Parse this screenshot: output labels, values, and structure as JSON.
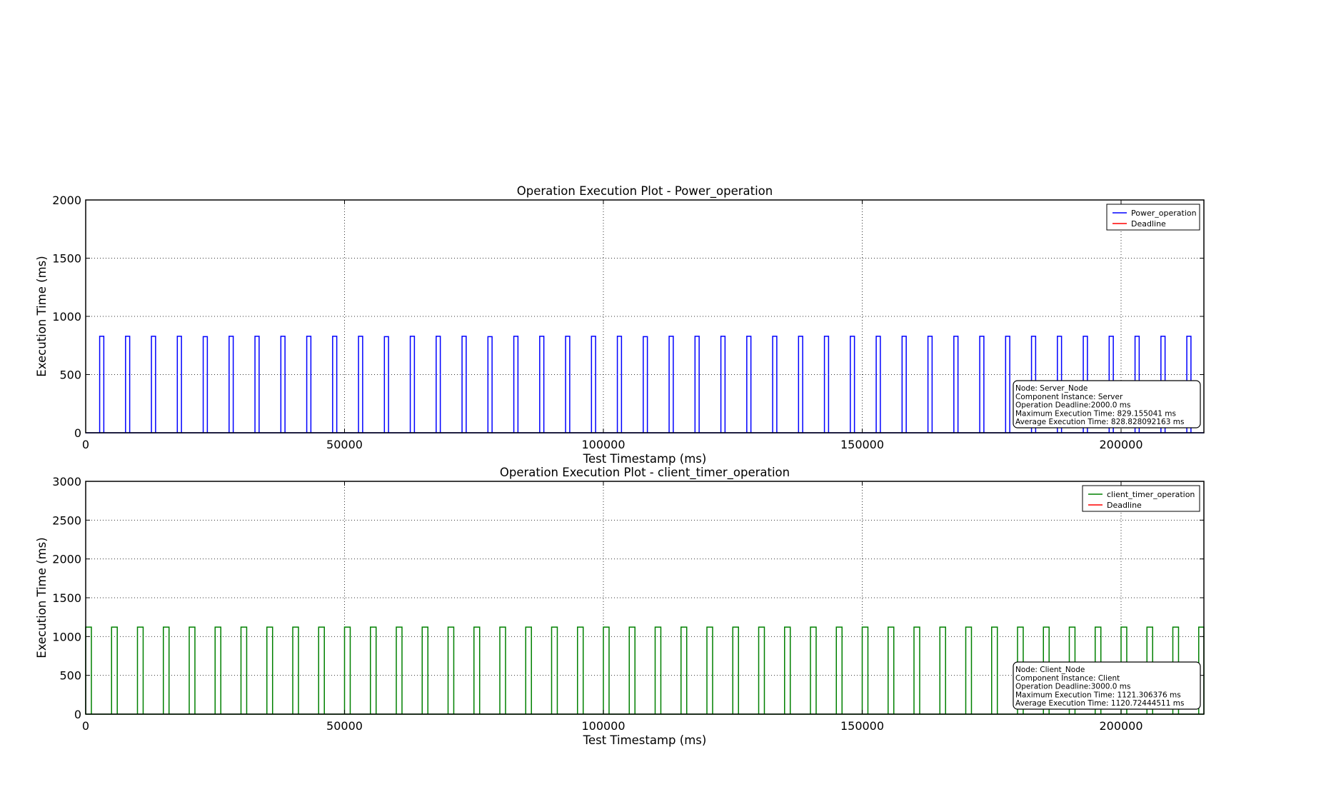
{
  "chart_data": [
    {
      "type": "line",
      "title": "Operation Execution Plot - Power_operation",
      "xlabel": "Test Timestamp (ms)",
      "ylabel": "Execution Time (ms)",
      "xlim": [
        0,
        216000
      ],
      "ylim": [
        0,
        2000
      ],
      "xticks": [
        0,
        50000,
        100000,
        150000,
        200000
      ],
      "xtick_labels": [
        "0",
        "50000",
        "100000",
        "150000",
        "200000"
      ],
      "yticks": [
        0,
        500,
        1000,
        1500,
        2000
      ],
      "ytick_labels": [
        "0",
        "500",
        "1000",
        "1500",
        "2000"
      ],
      "grid": true,
      "legend_position": "top-right",
      "series": [
        {
          "name": "Power_operation",
          "color": "#0000ff",
          "style": "pulse",
          "pulse_width_ms": 800,
          "pulse_starts": [
            2700,
            7700,
            12700,
            17700,
            22700,
            27700,
            32700,
            37700,
            42700,
            47700,
            52700,
            57700,
            62700,
            67700,
            72700,
            77700,
            82700,
            87700,
            92700,
            97700,
            102700,
            107700,
            112700,
            117700,
            122700,
            127700,
            132700,
            137700,
            142700,
            147700,
            152700,
            157700,
            162700,
            167700,
            172700,
            177700,
            182700,
            187700,
            192700,
            197700,
            202700,
            207700,
            212700
          ],
          "pulse_values": [
            829,
            829,
            829,
            829,
            826,
            829,
            829,
            829,
            829,
            829,
            829,
            826,
            829,
            829,
            829,
            826,
            829,
            829,
            829,
            829,
            829,
            826,
            829,
            829,
            829,
            829,
            829,
            829,
            829,
            829,
            829,
            829,
            829,
            829,
            829,
            829,
            829,
            829,
            829,
            829,
            829,
            829,
            829
          ]
        },
        {
          "name": "Deadline",
          "color": "#ff0000",
          "style": "legend-only"
        }
      ],
      "info_box": [
        "Node: Server_Node",
        "Component Instance: Server",
        "Operation Deadline:2000.0 ms",
        "Maximum Execution Time: 829.155041 ms",
        "Average Execution Time: 828.828092163 ms"
      ]
    },
    {
      "type": "line",
      "title": "Operation Execution Plot - client_timer_operation",
      "xlabel": "Test Timestamp (ms)",
      "ylabel": "Execution Time (ms)",
      "xlim": [
        0,
        216000
      ],
      "ylim": [
        0,
        3000
      ],
      "xticks": [
        0,
        50000,
        100000,
        150000,
        200000
      ],
      "xtick_labels": [
        "0",
        "50000",
        "100000",
        "150000",
        "200000"
      ],
      "yticks": [
        0,
        500,
        1000,
        1500,
        2000,
        2500,
        3000
      ],
      "ytick_labels": [
        "0",
        "500",
        "1000",
        "1500",
        "2000",
        "2500",
        "3000"
      ],
      "grid": true,
      "legend_position": "top-right",
      "series": [
        {
          "name": "client_timer_operation",
          "color": "#008000",
          "style": "pulse",
          "pulse_width_ms": 1100,
          "pulse_starts": [
            0,
            5000,
            10000,
            15000,
            20000,
            25000,
            30000,
            35000,
            40000,
            45000,
            50000,
            55000,
            60000,
            65000,
            70000,
            75000,
            80000,
            85000,
            90000,
            95000,
            100000,
            105000,
            110000,
            115000,
            120000,
            125000,
            130000,
            135000,
            140000,
            145000,
            150000,
            155000,
            160000,
            165000,
            170000,
            175000,
            180000,
            185000,
            190000,
            195000,
            200000,
            205000,
            210000,
            215000
          ],
          "pulse_values": [
            1121,
            1121,
            1121,
            1121,
            1121,
            1121,
            1121,
            1121,
            1121,
            1121,
            1121,
            1121,
            1121,
            1121,
            1121,
            1121,
            1121,
            1121,
            1121,
            1121,
            1121,
            1121,
            1121,
            1121,
            1121,
            1121,
            1121,
            1121,
            1121,
            1121,
            1121,
            1121,
            1121,
            1121,
            1121,
            1121,
            1121,
            1121,
            1121,
            1121,
            1121,
            1121,
            1121,
            1121
          ]
        },
        {
          "name": "Deadline",
          "color": "#ff0000",
          "style": "legend-only"
        }
      ],
      "info_box": [
        "Node: Client_Node",
        "Component Instance: Client",
        "Operation Deadline:3000.0 ms",
        "Maximum Execution Time: 1121.306376 ms",
        "Average Execution Time: 1120.72444511 ms"
      ]
    }
  ]
}
